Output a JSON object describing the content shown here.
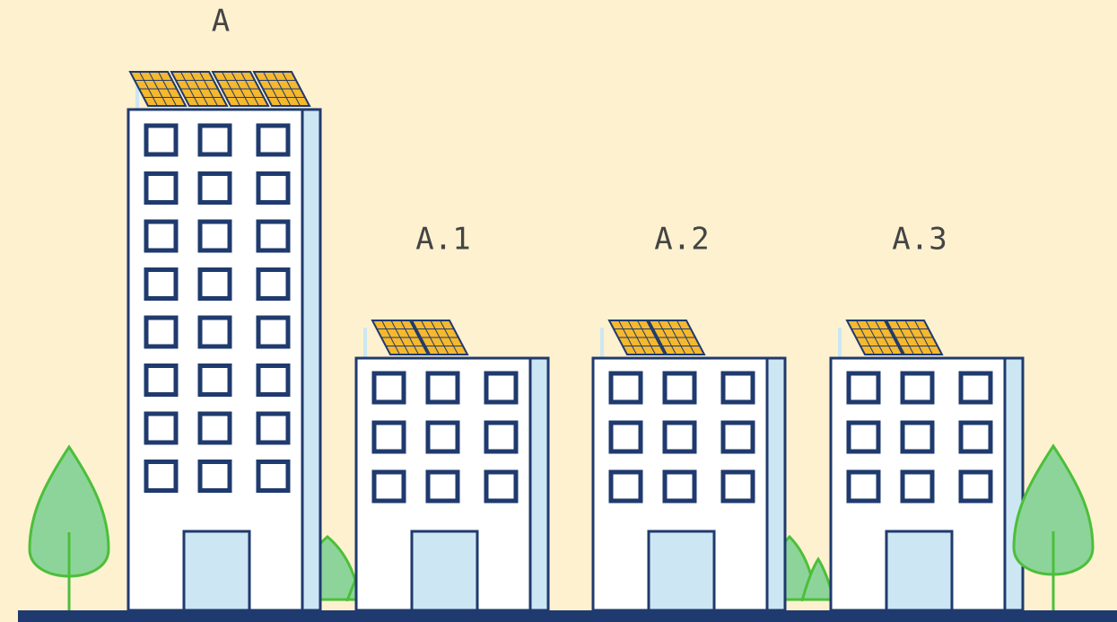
{
  "buildings": [
    {
      "label": "A"
    },
    {
      "label": "A.1"
    },
    {
      "label": "A.2"
    },
    {
      "label": "A.3"
    }
  ]
}
